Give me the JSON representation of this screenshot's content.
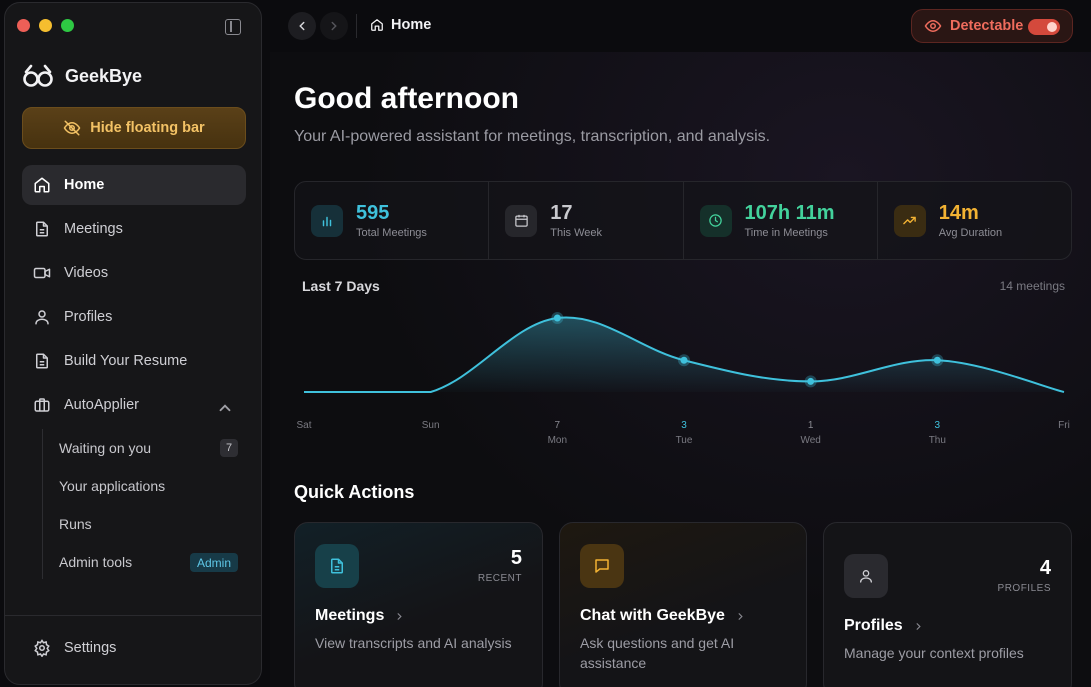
{
  "app": {
    "name": "GeekBye"
  },
  "sidebar": {
    "hide_button": "Hide floating bar",
    "items": [
      {
        "label": "Home",
        "icon": "home-icon",
        "active": true
      },
      {
        "label": "Meetings",
        "icon": "document-icon"
      },
      {
        "label": "Videos",
        "icon": "video-icon"
      },
      {
        "label": "Profiles",
        "icon": "user-icon"
      },
      {
        "label": "Build Your Resume",
        "icon": "document-icon"
      },
      {
        "label": "AutoApplier",
        "icon": "briefcase-icon",
        "expanded": true
      }
    ],
    "sub_items": [
      {
        "label": "Waiting on you",
        "badge": "7"
      },
      {
        "label": "Your applications"
      },
      {
        "label": "Runs"
      },
      {
        "label": "Admin tools",
        "badge": "Admin"
      }
    ],
    "settings": "Settings"
  },
  "topbar": {
    "breadcrumb": "Home",
    "detectable_label": "Detectable",
    "detectable_on": true
  },
  "main": {
    "greeting": "Good afternoon",
    "subtitle": "Your AI-powered assistant for meetings, transcription, and analysis.",
    "stats": [
      {
        "value": "595",
        "label": "Total Meetings",
        "color": "#3fc1dc",
        "icon": "bar-chart-icon"
      },
      {
        "value": "17",
        "label": "This Week",
        "color": "#c9c9ce",
        "icon": "calendar-icon"
      },
      {
        "value": "107h 11m",
        "label": "Time in Meetings",
        "color": "#43d29c",
        "icon": "clock-icon"
      },
      {
        "value": "14m",
        "label": "Avg Duration",
        "color": "#f2b233",
        "icon": "trending-up-icon"
      }
    ],
    "quick_actions_title": "Quick Actions",
    "cards": [
      {
        "title": "Meetings",
        "desc": "View transcripts and AI analysis",
        "count": "5",
        "count_label": "RECENT",
        "icon": "document-icon"
      },
      {
        "title": "Chat with GeekBye",
        "desc": "Ask questions and get AI assistance",
        "count": "",
        "count_label": "",
        "icon": "chat-icon"
      },
      {
        "title": "Profiles",
        "desc": "Manage your context profiles",
        "count": "4",
        "count_label": "PROFILES",
        "icon": "user-icon"
      }
    ]
  },
  "chart_data": {
    "type": "area",
    "title": "Last 7 Days",
    "meta": "14 meetings",
    "categories": [
      "Sat",
      "Sun",
      "Mon",
      "Tue",
      "Wed",
      "Thu",
      "Fri"
    ],
    "values": [
      0,
      0,
      7,
      3,
      1,
      3,
      0
    ],
    "value_labels": [
      "",
      "",
      "7",
      "3",
      "1",
      "3",
      ""
    ],
    "ylim": [
      0,
      7
    ],
    "grid": false,
    "color": "#3fc1dc"
  },
  "colors": {
    "accent": "#3fc1dc",
    "warning": "#f2b233",
    "danger": "#ef6c5d"
  }
}
